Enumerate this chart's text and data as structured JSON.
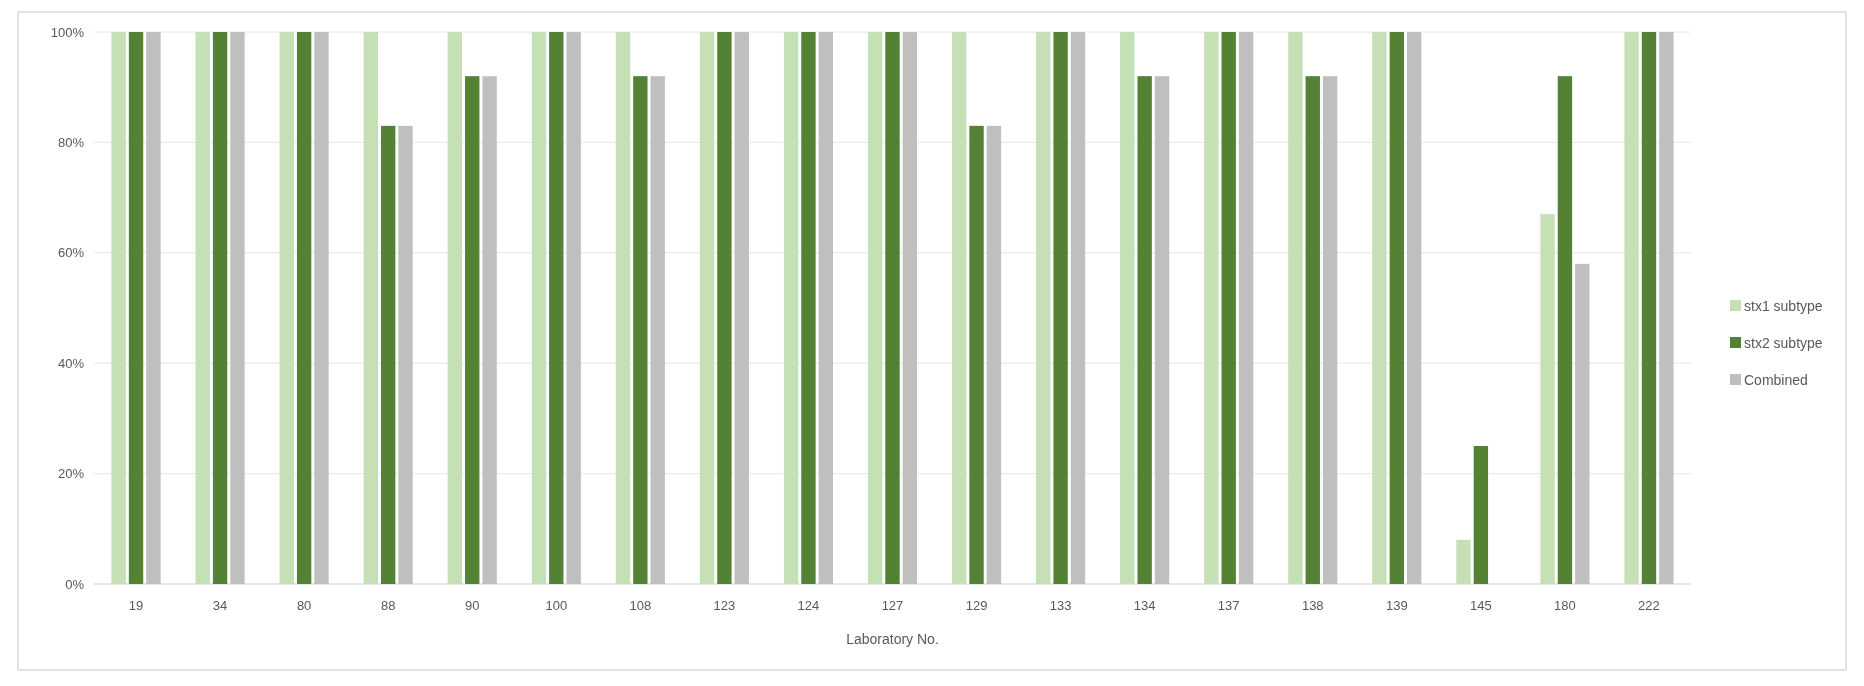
{
  "chart_data": {
    "type": "bar",
    "xlabel": "Laboratory No.",
    "categories": [
      "19",
      "34",
      "80",
      "88",
      "90",
      "100",
      "108",
      "123",
      "124",
      "127",
      "129",
      "133",
      "134",
      "137",
      "138",
      "139",
      "145",
      "180",
      "222"
    ],
    "series": [
      {
        "name": "stx1 subtype",
        "color": "#c5e0b4",
        "values": [
          100,
          100,
          100,
          100,
          100,
          100,
          100,
          100,
          100,
          100,
          100,
          100,
          100,
          100,
          100,
          100,
          8,
          67,
          100
        ]
      },
      {
        "name": "stx2 subtype",
        "color": "#548235",
        "values": [
          100,
          100,
          100,
          83,
          92,
          100,
          92,
          100,
          100,
          100,
          83,
          100,
          92,
          100,
          92,
          100,
          25,
          92,
          100
        ]
      },
      {
        "name": "Combined",
        "color": "#bfbfbf",
        "values": [
          100,
          100,
          100,
          83,
          92,
          100,
          92,
          100,
          100,
          100,
          83,
          100,
          92,
          100,
          92,
          100,
          0,
          58,
          100
        ]
      }
    ],
    "ylim": [
      0,
      100
    ],
    "yticks": [
      {
        "value": 0,
        "label": "0%"
      },
      {
        "value": 20,
        "label": "20%"
      },
      {
        "value": 40,
        "label": "40%"
      },
      {
        "value": 60,
        "label": "60%"
      },
      {
        "value": 80,
        "label": "80%"
      },
      {
        "value": 100,
        "label": "100%"
      }
    ],
    "grid": "y",
    "legend": "right"
  }
}
